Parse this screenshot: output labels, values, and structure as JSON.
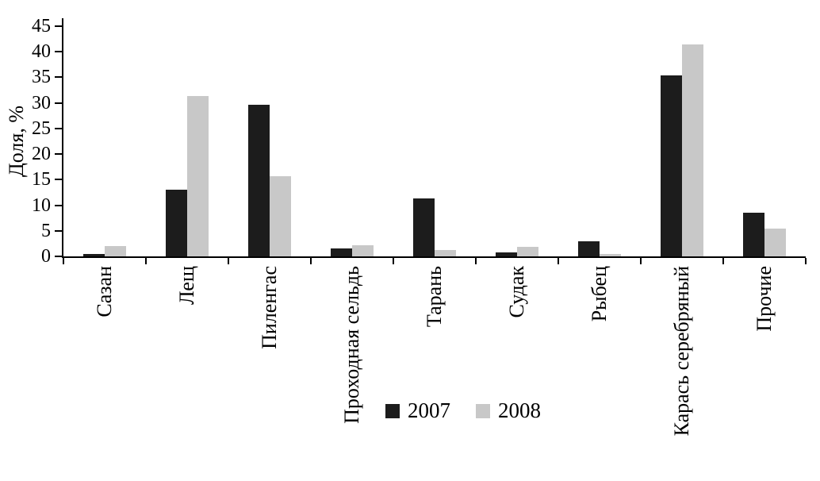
{
  "chart_data": {
    "type": "bar",
    "title": "",
    "xlabel": "",
    "ylabel": "Доля, %",
    "ylim": [
      0,
      45
    ],
    "ytick_step": 5,
    "grid": false,
    "legend_position": "bottom",
    "categories": [
      "Сазан",
      "Лещ",
      "Пиленгас",
      "Проходная сельдь",
      "Тарань",
      "Судак",
      "Рыбец",
      "Карась серебряный",
      "Прочие"
    ],
    "series": [
      {
        "name": "2007",
        "color": "#1c1c1c",
        "values": [
          0.5,
          13.0,
          29.7,
          1.6,
          11.4,
          0.8,
          3.0,
          35.4,
          8.6
        ]
      },
      {
        "name": "2008",
        "color": "#c8c8c8",
        "values": [
          2.0,
          31.3,
          15.6,
          2.2,
          1.3,
          1.8,
          0.4,
          41.5,
          5.4
        ]
      }
    ]
  }
}
